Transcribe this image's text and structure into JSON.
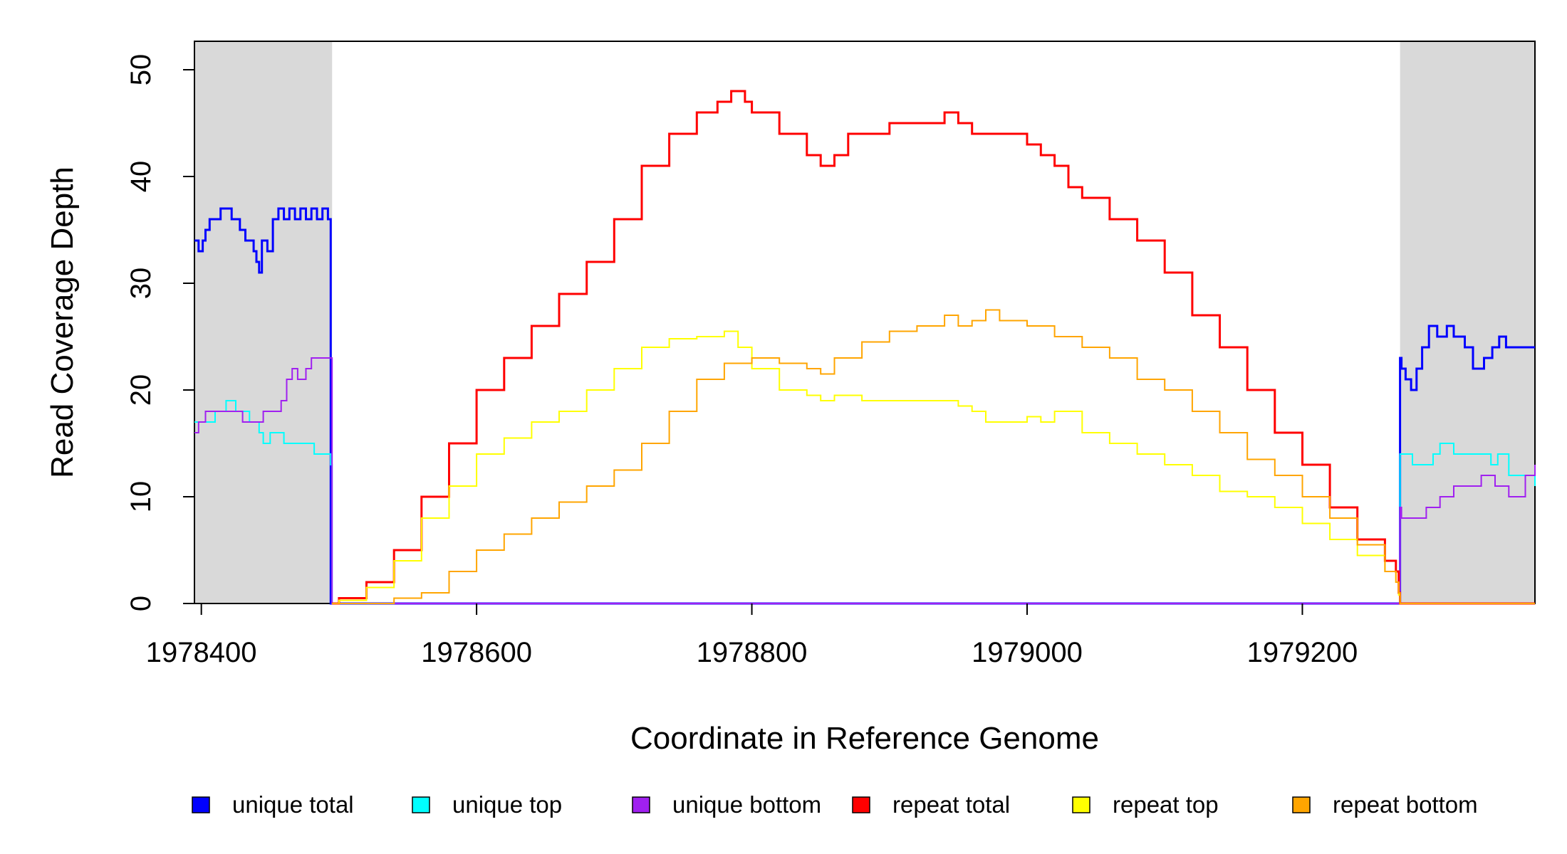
{
  "chart_data": {
    "type": "line",
    "title": "",
    "xlabel": "Coordinate in Reference Genome",
    "ylabel": "Read Coverage Depth",
    "xlim": [
      1978395,
      1979369
    ],
    "ylim": [
      0,
      50
    ],
    "xticks": [
      1978400,
      1978600,
      1978800,
      1979000,
      1979200
    ],
    "yticks": [
      0,
      10,
      20,
      30,
      40,
      50
    ],
    "shaded_regions": [
      [
        1978395,
        1978495
      ],
      [
        1979271,
        1979369
      ]
    ],
    "shade_color": "#d9d9d9",
    "legend_position": "bottom",
    "series": [
      {
        "name": "unique total",
        "color": "#0000ff",
        "x": [
          1978395,
          1978398,
          1978401,
          1978403,
          1978406,
          1978414,
          1978422,
          1978428,
          1978432,
          1978438,
          1978440,
          1978442,
          1978444,
          1978448,
          1978452,
          1978456,
          1978460,
          1978464,
          1978468,
          1978472,
          1978476,
          1978480,
          1978484,
          1978488,
          1978492,
          1978494,
          1978495,
          1978496,
          1979270,
          1979271,
          1979272,
          1979275,
          1979279,
          1979283,
          1979287,
          1979292,
          1979298,
          1979305,
          1979310,
          1979318,
          1979324,
          1979332,
          1979338,
          1979343,
          1979348,
          1979352,
          1979356,
          1979362,
          1979369
        ],
        "y": [
          34,
          33,
          34,
          35,
          36,
          37,
          36,
          35,
          34,
          33,
          32,
          31,
          34,
          33,
          36,
          37,
          36,
          37,
          36,
          37,
          36,
          37,
          36,
          37,
          36,
          0,
          0,
          0,
          0,
          23,
          22,
          21,
          20,
          22,
          24,
          26,
          25,
          26,
          25,
          24,
          22,
          23,
          24,
          25,
          24,
          24,
          24,
          24,
          24
        ]
      },
      {
        "name": "unique top",
        "color": "#00ffff",
        "x": [
          1978395,
          1978400,
          1978410,
          1978418,
          1978425,
          1978435,
          1978442,
          1978445,
          1978450,
          1978460,
          1978472,
          1978482,
          1978490,
          1978494,
          1978495,
          1978496,
          1979270,
          1979271,
          1979272,
          1979280,
          1979288,
          1979295,
          1979300,
          1979310,
          1979320,
          1979330,
          1979337,
          1979342,
          1979350,
          1979355,
          1979362,
          1979369
        ],
        "y": [
          17,
          17,
          18,
          19,
          18,
          17,
          16,
          15,
          16,
          15,
          15,
          14,
          14,
          13,
          0,
          0,
          0,
          14,
          14,
          13,
          13,
          14,
          15,
          14,
          14,
          14,
          13,
          14,
          12,
          12,
          12,
          11
        ]
      },
      {
        "name": "unique bottom",
        "color": "#a020f0",
        "x": [
          1978395,
          1978398,
          1978403,
          1978410,
          1978420,
          1978430,
          1978440,
          1978445,
          1978452,
          1978458,
          1978462,
          1978466,
          1978470,
          1978476,
          1978480,
          1978486,
          1978491,
          1978494,
          1978495,
          1978496,
          1979270,
          1979271,
          1979272,
          1979280,
          1979290,
          1979300,
          1979310,
          1979320,
          1979330,
          1979340,
          1979350,
          1979356,
          1979362,
          1979369
        ],
        "y": [
          16,
          17,
          18,
          18,
          18,
          17,
          17,
          18,
          18,
          19,
          21,
          22,
          21,
          22,
          23,
          23,
          23,
          23,
          0,
          0,
          0,
          9,
          8,
          8,
          9,
          10,
          11,
          11,
          12,
          11,
          10,
          10,
          12,
          13
        ]
      },
      {
        "name": "repeat total",
        "color": "#ff0000",
        "x": [
          1978495,
          1978500,
          1978520,
          1978540,
          1978560,
          1978580,
          1978600,
          1978620,
          1978640,
          1978660,
          1978680,
          1978700,
          1978720,
          1978740,
          1978760,
          1978775,
          1978785,
          1978795,
          1978800,
          1978820,
          1978840,
          1978850,
          1978860,
          1978870,
          1978880,
          1978900,
          1978920,
          1978940,
          1978950,
          1978960,
          1978970,
          1978980,
          1979000,
          1979010,
          1979020,
          1979030,
          1979040,
          1979060,
          1979080,
          1979100,
          1979120,
          1979140,
          1979160,
          1979180,
          1979200,
          1979220,
          1979240,
          1979260,
          1979268,
          1979270,
          1979271,
          1979369
        ],
        "y": [
          0,
          0.5,
          2,
          5,
          10,
          15,
          20,
          23,
          26,
          29,
          32,
          36,
          41,
          44,
          46,
          47,
          48,
          47,
          46,
          44,
          42,
          41,
          42,
          44,
          44,
          45,
          45,
          46,
          45,
          44,
          44,
          44,
          43,
          42,
          41,
          39,
          38,
          36,
          34,
          31,
          27,
          24,
          20,
          16,
          13,
          9,
          6,
          4,
          3,
          1,
          0,
          0
        ]
      },
      {
        "name": "repeat top",
        "color": "#ffff00",
        "x": [
          1978495,
          1978500,
          1978520,
          1978540,
          1978560,
          1978580,
          1978600,
          1978620,
          1978640,
          1978660,
          1978680,
          1978700,
          1978720,
          1978740,
          1978760,
          1978770,
          1978780,
          1978790,
          1978800,
          1978820,
          1978840,
          1978850,
          1978860,
          1978880,
          1978900,
          1978920,
          1978940,
          1978950,
          1978960,
          1978970,
          1978980,
          1979000,
          1979010,
          1979020,
          1979040,
          1979060,
          1979080,
          1979100,
          1979120,
          1979140,
          1979160,
          1979180,
          1979200,
          1979220,
          1979240,
          1979260,
          1979268,
          1979270,
          1979271,
          1979369
        ],
        "y": [
          0,
          0.3,
          1.5,
          4,
          8,
          11,
          14,
          15.5,
          17,
          18,
          20,
          22,
          24,
          24.8,
          25,
          25,
          25.5,
          24,
          22,
          20,
          19.5,
          19,
          19.5,
          19,
          19,
          19,
          19,
          18.5,
          18,
          17,
          17,
          17.5,
          17,
          18,
          16,
          15,
          14,
          13,
          12,
          10.5,
          10,
          9,
          7.5,
          6,
          4.5,
          3,
          2,
          0.8,
          0,
          0
        ]
      },
      {
        "name": "repeat bottom",
        "color": "#ffa500",
        "x": [
          1978495,
          1978520,
          1978540,
          1978560,
          1978580,
          1978600,
          1978620,
          1978640,
          1978660,
          1978680,
          1978700,
          1978720,
          1978740,
          1978760,
          1978780,
          1978800,
          1978820,
          1978840,
          1978850,
          1978860,
          1978880,
          1978900,
          1978920,
          1978940,
          1978950,
          1978960,
          1978970,
          1978980,
          1979000,
          1979020,
          1979040,
          1979060,
          1979080,
          1979100,
          1979120,
          1979140,
          1979160,
          1979180,
          1979200,
          1979220,
          1979240,
          1979260,
          1979268,
          1979270,
          1979271,
          1979369
        ],
        "y": [
          0,
          0,
          0.5,
          1,
          3,
          5,
          6.5,
          8,
          9.5,
          11,
          12.5,
          15,
          18,
          21,
          22.5,
          23,
          22.5,
          22,
          21.5,
          23,
          24.5,
          25.5,
          26,
          27,
          26,
          26.5,
          27.5,
          26.5,
          26,
          25,
          24,
          23,
          21,
          20,
          18,
          16,
          13.5,
          12,
          10,
          8,
          5.5,
          3,
          2,
          1,
          0,
          0
        ]
      }
    ]
  }
}
